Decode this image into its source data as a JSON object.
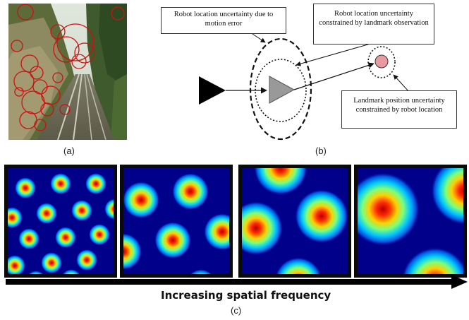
{
  "panel_a": {
    "label": "(a)"
  },
  "panel_b": {
    "label": "(b)",
    "callout_motion": "Robot location uncertainty due to motion error",
    "callout_landmark_obs": "Robot location uncertainty constrained by landmark observation",
    "callout_landmark_pos": "Landmark position uncertainty constrained by robot location"
  },
  "panel_c": {
    "label": "(c)",
    "arrow_caption": "Increasing spatial frequency"
  },
  "colors": {
    "ellipse_stroke": "#111111",
    "robot_fill": "#999999",
    "landmark_fill": "#e89aa0",
    "feature_circle": "#cc1111"
  },
  "icons": [
    "photo-railway-track",
    "robot-triangle-icon",
    "landmark-dot-icon",
    "arrow-right-icon"
  ]
}
